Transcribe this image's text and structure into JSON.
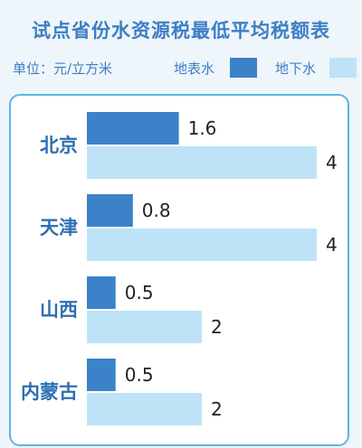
{
  "title": "试点省份水资源税最低平均税额表",
  "legend": {
    "unit": "单位：元/立方米",
    "surface_label": "地表水",
    "ground_label": "地下水"
  },
  "colors": {
    "surface": "#3b82c8",
    "ground": "#bee3f7",
    "category": "#2e6fb2",
    "panel_border": "#5fb6dd"
  },
  "chart_data": {
    "type": "bar",
    "orientation": "horizontal",
    "categories": [
      "北京",
      "天津",
      "山西",
      "内蒙古"
    ],
    "series": [
      {
        "name": "地表水",
        "values": [
          1.6,
          0.8,
          0.5,
          0.5
        ],
        "labels": [
          "1.6",
          "0.8",
          "0.5",
          "0.5"
        ]
      },
      {
        "name": "地下水",
        "values": [
          4,
          4,
          2,
          2
        ],
        "labels": [
          "4",
          "4",
          "2",
          "2"
        ]
      }
    ],
    "title": "试点省份水资源税最低平均税额表",
    "xlim": [
      0,
      4
    ],
    "grid": false,
    "legend_position": "top"
  }
}
